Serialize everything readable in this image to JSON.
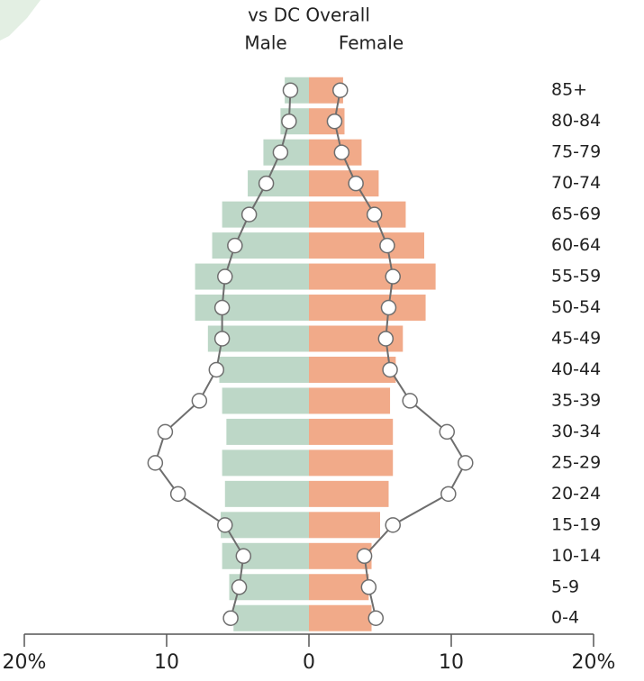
{
  "chart_data": {
    "type": "pyramid",
    "title": "vs DC Overall",
    "categories": [
      "85+",
      "80-84",
      "75-79",
      "70-74",
      "65-69",
      "60-64",
      "55-59",
      "50-54",
      "45-49",
      "40-44",
      "35-39",
      "30-34",
      "25-29",
      "20-24",
      "15-19",
      "10-14",
      "5-9",
      "0-4"
    ],
    "series": [
      {
        "name": "Male",
        "color": "#bdd7c7",
        "values": [
          -1.7,
          -2.0,
          -3.2,
          -4.3,
          -6.1,
          -6.8,
          -8.0,
          -8.0,
          -7.1,
          -6.3,
          -6.1,
          -5.8,
          -6.1,
          -5.9,
          -6.2,
          -6.1,
          -5.6,
          -5.3
        ],
        "overall_values": [
          -1.3,
          -1.4,
          -2.0,
          -3.0,
          -4.2,
          -5.2,
          -5.9,
          -6.1,
          -6.1,
          -6.5,
          -7.7,
          -10.1,
          -10.8,
          -9.2,
          -5.9,
          -4.6,
          -4.9,
          -5.5
        ]
      },
      {
        "name": "Female",
        "color": "#f1aa89",
        "values": [
          2.4,
          2.5,
          3.7,
          4.9,
          6.8,
          8.1,
          8.9,
          8.2,
          6.6,
          6.1,
          5.7,
          5.9,
          5.9,
          5.6,
          5.0,
          4.4,
          4.2,
          4.4
        ],
        "overall_values": [
          2.2,
          1.8,
          2.3,
          3.3,
          4.6,
          5.5,
          5.9,
          5.6,
          5.4,
          5.7,
          7.1,
          9.7,
          11.0,
          9.8,
          5.9,
          3.9,
          4.2,
          4.7
        ]
      }
    ],
    "overall_color": "#6e6e6e",
    "xlim": [
      -20,
      20
    ],
    "xticks": [
      {
        "value": -20,
        "label": "20%"
      },
      {
        "value": -10,
        "label": "10"
      },
      0,
      10,
      {
        "value": 20,
        "label": "20%"
      }
    ]
  }
}
